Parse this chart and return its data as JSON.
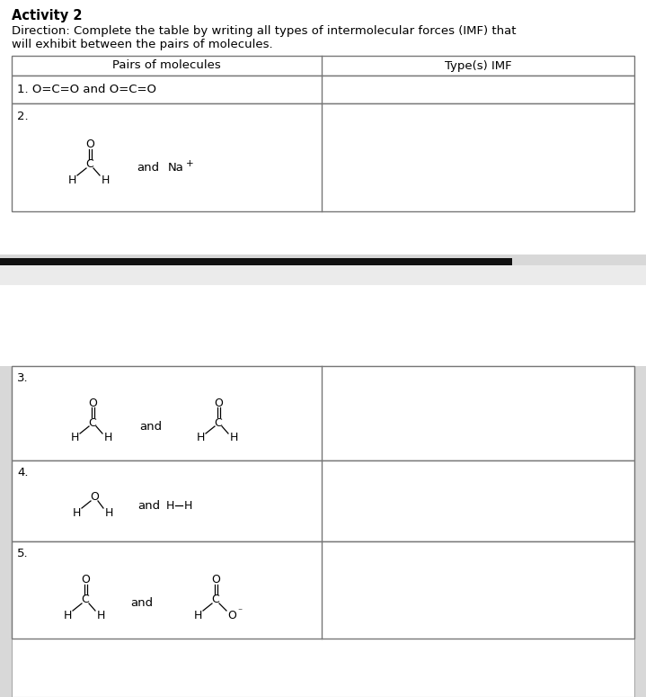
{
  "title": "Activity 2",
  "direction_line1": "Direction: Complete the table by writing all types of intermolecular forces (IMF) that",
  "direction_line2": "will exhibit between the pairs of molecules.",
  "col1_header": "Pairs of molecules",
  "col2_header": "Type(s) IMF",
  "text_color": "#000000",
  "table_border_color": "#777777",
  "title_fontsize": 10.5,
  "direction_fontsize": 9.5,
  "header_fontsize": 9.5,
  "cell_fontsize": 9.5,
  "mol_fontsize": 9,
  "row1_text": "1. O=C=O and O=C=O",
  "row2_label": "2.",
  "row3_label": "3.",
  "row4_label": "4.",
  "row5_label": "5.",
  "upper_bg": "#ffffff",
  "lower_bg": "#ffffff",
  "gap_bg": "#e0e0e0",
  "black_bar_color": "#111111",
  "page_edge_color": "#cccccc"
}
